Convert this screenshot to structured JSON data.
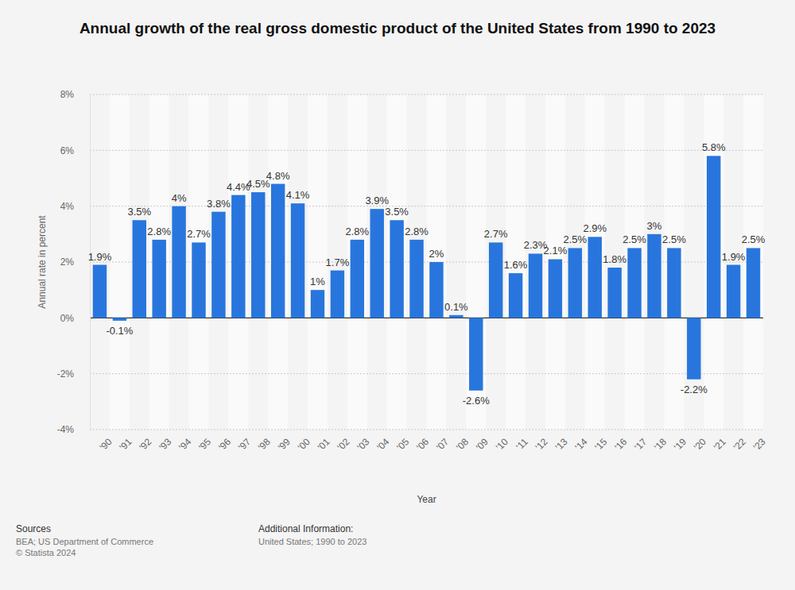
{
  "chart_data": {
    "type": "bar",
    "title": "Annual growth of the real gross domestic product of the United States from 1990 to 2023",
    "x_label": "Year",
    "y_label": "Annual rate in percent",
    "categories": [
      "'90",
      "'91",
      "'92",
      "'93",
      "'94",
      "'95",
      "'96",
      "'97",
      "'98",
      "'99",
      "'00",
      "'01",
      "'02",
      "'03",
      "'04",
      "'05",
      "'06",
      "'07",
      "'08",
      "'09",
      "'10",
      "'11",
      "'12",
      "'13",
      "'14",
      "'15",
      "'16",
      "'17",
      "'18",
      "'19",
      "'20",
      "'21",
      "'22",
      "'23"
    ],
    "values": [
      1.9,
      -0.1,
      3.5,
      2.8,
      4,
      2.7,
      3.8,
      4.4,
      4.5,
      4.8,
      4.1,
      1,
      1.7,
      2.8,
      3.9,
      3.5,
      2.8,
      2,
      0.1,
      -2.6,
      2.7,
      1.6,
      2.3,
      2.1,
      2.5,
      2.9,
      1.8,
      2.5,
      3,
      2.5,
      -2.2,
      5.8,
      1.9,
      2.5
    ],
    "value_labels": [
      "1.9%",
      "-0.1%",
      "3.5%",
      "2.8%",
      "4%",
      "2.7%",
      "3.8%",
      "4.4%",
      "4.5%",
      "4.8%",
      "4.1%",
      "1%",
      "1.7%",
      "2.8%",
      "3.9%",
      "3.5%",
      "2.8%",
      "2%",
      "0.1%",
      "-2.6%",
      "2.7%",
      "1.6%",
      "2.3%",
      "2.1%",
      "2.5%",
      "2.9%",
      "1.8%",
      "2.5%",
      "3%",
      "2.5%",
      "-2.2%",
      "5.8%",
      "1.9%",
      "2.5%"
    ],
    "color": "#2876dd",
    "ylim": [
      -4,
      8
    ],
    "yticks": [
      {
        "value": -4,
        "label": "-4%"
      },
      {
        "value": -2,
        "label": "-2%"
      },
      {
        "value": 0,
        "label": "0%"
      },
      {
        "value": 2,
        "label": "2%"
      },
      {
        "value": 4,
        "label": "4%"
      },
      {
        "value": 6,
        "label": "6%"
      },
      {
        "value": 8,
        "label": "8%"
      }
    ],
    "grid": true,
    "data_labels": true,
    "footer": {
      "sources_title": "Sources",
      "sources": [
        "BEA; US Department of Commerce",
        "© Statista 2024"
      ],
      "info_title": "Additional Information:",
      "info": [
        "United States; 1990 to 2023"
      ]
    }
  }
}
